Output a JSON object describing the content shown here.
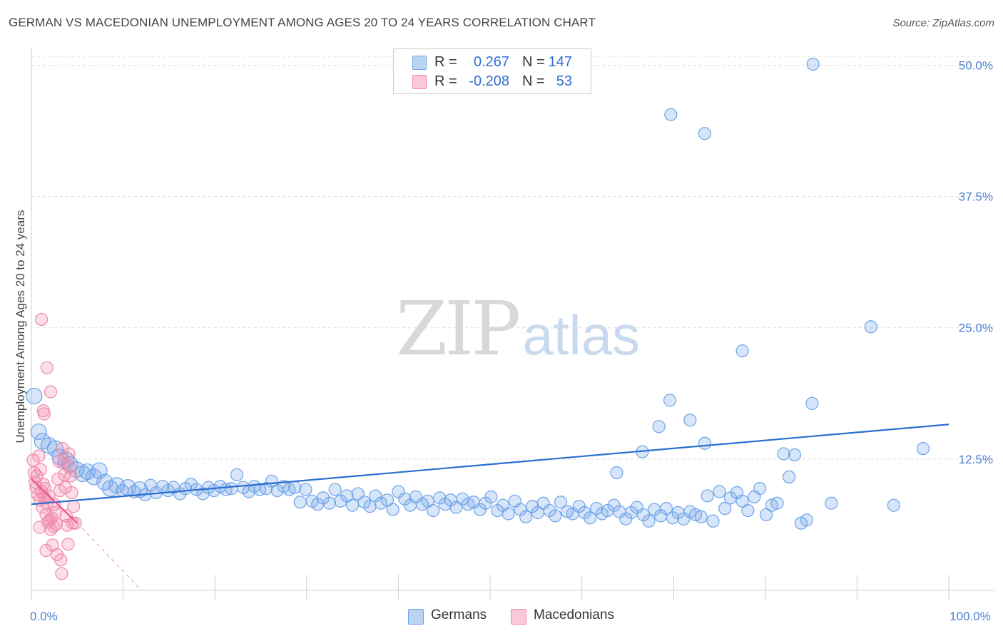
{
  "title": "GERMAN VS MACEDONIAN UNEMPLOYMENT AMONG AGES 20 TO 24 YEARS CORRELATION CHART",
  "source": "Source: ZipAtlas.com",
  "watermark": {
    "zip": "ZIP",
    "atlas": "atlas"
  },
  "legend": {
    "r_label": "R =",
    "n_label": "N =",
    "series": [
      {
        "name": "Germans",
        "r": "0.267",
        "n": "147",
        "color": "#6fa3e8"
      },
      {
        "name": "Macedonians",
        "r": "-0.208",
        "n": "53",
        "color": "#f08aa9"
      }
    ]
  },
  "chart_data": {
    "type": "scatter",
    "title": "GERMAN VS MACEDONIAN UNEMPLOYMENT AMONG AGES 20 TO 24 YEARS CORRELATION CHART",
    "xlabel": "",
    "ylabel": "Unemployment Among Ages 20 to 24 years",
    "xlim": [
      0,
      100
    ],
    "ylim": [
      0,
      52
    ],
    "x_tick_labels": [
      {
        "value": 0,
        "label": "0.0%"
      },
      {
        "value": 100,
        "label": "100.0%"
      }
    ],
    "y_tick_labels": [
      {
        "value": 12.5,
        "label": "12.5%"
      },
      {
        "value": 25,
        "label": "25.0%"
      },
      {
        "value": 37.5,
        "label": "37.5%"
      },
      {
        "value": 50,
        "label": "50.0%"
      }
    ],
    "series": [
      {
        "name": "Germans",
        "color": "#6fa3e8",
        "trend": {
          "x0": 0,
          "y0": 8.2,
          "x1": 100,
          "y1": 15.8,
          "style": "solid"
        },
        "points": [
          [
            0.3,
            18.5
          ],
          [
            0.8,
            15.1
          ],
          [
            1.2,
            14.2
          ],
          [
            1.9,
            13.8
          ],
          [
            2.6,
            13.5
          ],
          [
            3.1,
            12.7
          ],
          [
            3.8,
            12.4
          ],
          [
            4.2,
            12.0
          ],
          [
            4.9,
            11.5
          ],
          [
            5.6,
            11.1
          ],
          [
            6.1,
            11.3
          ],
          [
            6.8,
            10.8
          ],
          [
            7.4,
            11.4
          ],
          [
            8.0,
            10.3
          ],
          [
            8.6,
            9.7
          ],
          [
            9.3,
            10.0
          ],
          [
            9.9,
            9.5
          ],
          [
            10.5,
            9.8
          ],
          [
            11.2,
            9.4
          ],
          [
            11.8,
            9.6
          ],
          [
            12.4,
            9.1
          ],
          [
            13.0,
            10.0
          ],
          [
            13.6,
            9.3
          ],
          [
            14.3,
            9.9
          ],
          [
            14.9,
            9.5
          ],
          [
            15.5,
            9.8
          ],
          [
            16.2,
            9.2
          ],
          [
            16.8,
            9.7
          ],
          [
            17.4,
            10.1
          ],
          [
            18.0,
            9.6
          ],
          [
            18.7,
            9.2
          ],
          [
            19.3,
            9.8
          ],
          [
            19.9,
            9.5
          ],
          [
            20.6,
            9.9
          ],
          [
            21.2,
            9.6
          ],
          [
            21.8,
            9.7
          ],
          [
            22.4,
            11.0
          ],
          [
            23.1,
            9.8
          ],
          [
            23.7,
            9.4
          ],
          [
            24.3,
            9.9
          ],
          [
            24.9,
            9.6
          ],
          [
            25.6,
            9.7
          ],
          [
            26.2,
            10.4
          ],
          [
            26.8,
            9.5
          ],
          [
            27.5,
            9.9
          ],
          [
            28.1,
            9.6
          ],
          [
            28.7,
            9.8
          ],
          [
            29.3,
            8.4
          ],
          [
            29.9,
            9.6
          ],
          [
            30.6,
            8.5
          ],
          [
            31.2,
            8.2
          ],
          [
            31.8,
            8.8
          ],
          [
            32.5,
            8.3
          ],
          [
            33.1,
            9.6
          ],
          [
            33.7,
            8.5
          ],
          [
            34.4,
            9.0
          ],
          [
            35.0,
            8.1
          ],
          [
            35.6,
            9.2
          ],
          [
            36.3,
            8.4
          ],
          [
            36.9,
            8.0
          ],
          [
            37.5,
            9.0
          ],
          [
            38.1,
            8.3
          ],
          [
            38.8,
            8.6
          ],
          [
            39.4,
            7.7
          ],
          [
            40.0,
            9.4
          ],
          [
            40.7,
            8.7
          ],
          [
            41.3,
            8.1
          ],
          [
            41.9,
            8.9
          ],
          [
            42.6,
            8.2
          ],
          [
            43.2,
            8.5
          ],
          [
            43.8,
            7.6
          ],
          [
            44.5,
            8.8
          ],
          [
            45.1,
            8.2
          ],
          [
            45.7,
            8.6
          ],
          [
            46.3,
            7.9
          ],
          [
            47.0,
            8.7
          ],
          [
            47.6,
            8.2
          ],
          [
            48.2,
            8.4
          ],
          [
            48.9,
            7.7
          ],
          [
            49.5,
            8.3
          ],
          [
            50.1,
            8.9
          ],
          [
            50.8,
            7.6
          ],
          [
            51.4,
            8.1
          ],
          [
            52.0,
            7.3
          ],
          [
            52.7,
            8.5
          ],
          [
            53.3,
            7.7
          ],
          [
            53.9,
            7.0
          ],
          [
            54.6,
            8.0
          ],
          [
            55.2,
            7.4
          ],
          [
            55.8,
            8.3
          ],
          [
            56.5,
            7.6
          ],
          [
            57.1,
            7.1
          ],
          [
            57.7,
            8.4
          ],
          [
            58.4,
            7.5
          ],
          [
            59.0,
            7.3
          ],
          [
            59.7,
            8.0
          ],
          [
            60.3,
            7.4
          ],
          [
            60.9,
            6.9
          ],
          [
            61.6,
            7.8
          ],
          [
            62.2,
            7.3
          ],
          [
            62.8,
            7.6
          ],
          [
            63.5,
            8.1
          ],
          [
            64.1,
            7.5
          ],
          [
            64.8,
            6.8
          ],
          [
            65.4,
            7.4
          ],
          [
            66.0,
            7.9
          ],
          [
            66.7,
            7.2
          ],
          [
            67.3,
            6.6
          ],
          [
            67.9,
            7.7
          ],
          [
            68.6,
            7.1
          ],
          [
            69.2,
            7.8
          ],
          [
            69.9,
            6.9
          ],
          [
            70.5,
            7.4
          ],
          [
            71.1,
            6.8
          ],
          [
            71.8,
            7.5
          ],
          [
            72.4,
            7.2
          ],
          [
            73.0,
            7.0
          ],
          [
            73.7,
            9.0
          ],
          [
            74.3,
            6.6
          ],
          [
            75.0,
            9.4
          ],
          [
            75.6,
            7.8
          ],
          [
            76.2,
            8.8
          ],
          [
            76.9,
            9.3
          ],
          [
            77.5,
            8.5
          ],
          [
            78.1,
            7.6
          ],
          [
            78.8,
            8.9
          ],
          [
            79.4,
            9.7
          ],
          [
            80.1,
            7.2
          ],
          [
            80.7,
            8.1
          ],
          [
            81.3,
            8.3
          ],
          [
            82.0,
            13.0
          ],
          [
            82.6,
            10.8
          ],
          [
            83.2,
            12.9
          ],
          [
            83.9,
            6.4
          ],
          [
            84.5,
            6.7
          ],
          [
            85.1,
            17.8
          ],
          [
            63.8,
            11.2
          ],
          [
            66.6,
            13.2
          ],
          [
            68.4,
            15.6
          ],
          [
            69.6,
            18.1
          ],
          [
            71.8,
            16.2
          ],
          [
            73.4,
            14.0
          ],
          [
            77.5,
            22.8
          ],
          [
            87.2,
            8.3
          ],
          [
            94.0,
            8.1
          ],
          [
            91.5,
            25.1
          ],
          [
            85.2,
            50.1
          ],
          [
            69.7,
            45.3
          ],
          [
            73.4,
            43.5
          ],
          [
            97.2,
            13.5
          ]
        ]
      },
      {
        "name": "Macedonians",
        "color": "#f08aa9",
        "trend": {
          "x0": 0,
          "y0": 10.6,
          "x1": 5,
          "y1": 6.4,
          "style": "solid",
          "ext_x1": 12,
          "ext_y1": 0.0,
          "ext_style": "dashed"
        },
        "points": [
          [
            0.2,
            12.4
          ],
          [
            0.3,
            11.2
          ],
          [
            0.4,
            10.3
          ],
          [
            0.5,
            9.8
          ],
          [
            0.6,
            10.9
          ],
          [
            0.7,
            9.1
          ],
          [
            0.8,
            12.8
          ],
          [
            0.9,
            8.6
          ],
          [
            1.0,
            11.5
          ],
          [
            1.1,
            9.4
          ],
          [
            1.2,
            7.9
          ],
          [
            1.3,
            10.1
          ],
          [
            1.4,
            8.8
          ],
          [
            1.5,
            9.7
          ],
          [
            1.6,
            7.2
          ],
          [
            1.7,
            8.3
          ],
          [
            1.8,
            6.5
          ],
          [
            1.9,
            9.0
          ],
          [
            2.0,
            6.7
          ],
          [
            2.1,
            5.8
          ],
          [
            2.2,
            6.9
          ],
          [
            2.3,
            4.3
          ],
          [
            2.4,
            6.1
          ],
          [
            2.5,
            8.2
          ],
          [
            2.6,
            7.4
          ],
          [
            2.7,
            6.3
          ],
          [
            2.8,
            3.4
          ],
          [
            2.9,
            10.6
          ],
          [
            3.0,
            12.3
          ],
          [
            3.1,
            9.5
          ],
          [
            3.2,
            2.9
          ],
          [
            3.3,
            1.6
          ],
          [
            3.4,
            13.5
          ],
          [
            3.5,
            12.1
          ],
          [
            3.6,
            11.0
          ],
          [
            3.7,
            9.8
          ],
          [
            3.8,
            7.1
          ],
          [
            3.9,
            6.2
          ],
          [
            4.0,
            4.4
          ],
          [
            4.1,
            13.0
          ],
          [
            4.2,
            11.7
          ],
          [
            4.3,
            10.9
          ],
          [
            4.4,
            9.3
          ],
          [
            4.5,
            6.4
          ],
          [
            4.6,
            8.0
          ],
          [
            1.1,
            25.8
          ],
          [
            1.7,
            21.2
          ],
          [
            2.1,
            18.9
          ],
          [
            1.3,
            17.1
          ],
          [
            1.4,
            16.8
          ],
          [
            0.9,
            6.0
          ],
          [
            1.6,
            3.8
          ],
          [
            4.8,
            6.4
          ]
        ]
      }
    ]
  }
}
